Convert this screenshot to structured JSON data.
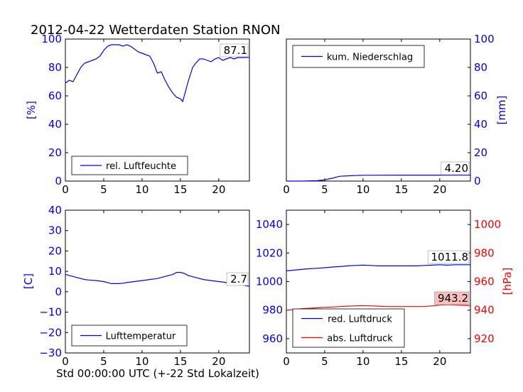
{
  "figure_title": "2012-04-22 Wetterdaten Station RNON",
  "xlabel": "Std 00:00:00 UTC (+-22 Std Lokalzeit)",
  "colors": {
    "blue": "#0000ff",
    "red": "#ff0000",
    "black": "#000000",
    "label_bg_red": "#f6c0c0"
  },
  "chart_data": [
    {
      "type": "line",
      "panel": "humidity",
      "xlim": [
        0,
        24
      ],
      "ylim": [
        0,
        100
      ],
      "xticks": [
        "0",
        "5",
        "10",
        "15",
        "20"
      ],
      "yticks": [
        "0",
        "20",
        "40",
        "60",
        "80",
        "100"
      ],
      "ylabel": "[%]",
      "legend_placement": "lower-left",
      "last_value_label": "87.1",
      "series": [
        {
          "name": "rel. Luftfeuchte",
          "color": "#0000ff",
          "x": [
            0,
            0.5,
            1,
            1.5,
            2,
            2.5,
            3,
            3.5,
            4,
            4.5,
            5,
            5.5,
            6,
            6.5,
            7,
            7.5,
            8,
            8.5,
            9,
            9.5,
            10,
            10.5,
            11,
            11.5,
            12,
            12.5,
            13,
            13.5,
            14,
            14.5,
            15,
            15.3,
            15.6,
            16,
            16.3,
            16.6,
            17,
            17.5,
            18,
            18.5,
            19,
            19.5,
            20,
            20.5,
            21,
            21.5,
            22,
            22.5,
            23,
            23.5,
            24
          ],
          "y": [
            69,
            71,
            70,
            75,
            80,
            83,
            84,
            85,
            86,
            88,
            92,
            95,
            96,
            96,
            96,
            95,
            96,
            95,
            93,
            91,
            90,
            89,
            88,
            83,
            76,
            77,
            71,
            66,
            62,
            59,
            58,
            56,
            62,
            70,
            75,
            80,
            83,
            86,
            86,
            85,
            84,
            86,
            87,
            85,
            86,
            87,
            86,
            87,
            87,
            87,
            87.1
          ]
        }
      ]
    },
    {
      "type": "line",
      "panel": "precipitation",
      "xlim": [
        0,
        24
      ],
      "ylim": [
        0,
        100
      ],
      "xticks": [
        "0",
        "5",
        "10",
        "15",
        "20"
      ],
      "yticks": [
        "0",
        "20",
        "40",
        "60",
        "80",
        "100"
      ],
      "ylabel": "[mm]",
      "legend_placement": "upper-left",
      "last_value_label": "4.20",
      "series": [
        {
          "name": "kum. Niederschlag",
          "color": "#0000ff",
          "x": [
            0,
            2,
            4,
            5,
            5.5,
            6,
            6.5,
            7,
            8,
            9,
            10,
            12,
            15,
            18,
            20,
            22,
            24
          ],
          "y": [
            0,
            0,
            0.3,
            0.8,
            1.5,
            2.0,
            2.8,
            3.4,
            3.7,
            3.9,
            4.1,
            4.15,
            4.2,
            4.2,
            4.2,
            4.2,
            4.2
          ]
        }
      ]
    },
    {
      "type": "line",
      "panel": "temperature",
      "xlim": [
        0,
        24
      ],
      "ylim": [
        -30,
        40
      ],
      "xticks": [
        "0",
        "5",
        "10",
        "15",
        "20"
      ],
      "yticks": [
        "−30",
        "−20",
        "−10",
        "0",
        "10",
        "20",
        "30",
        "40"
      ],
      "ylabel": "[C]",
      "legend_placement": "lower-left",
      "last_value_label": "2.7",
      "series": [
        {
          "name": "Lufttemperatur",
          "color": "#0000ff",
          "x": [
            0,
            0.5,
            1,
            1.5,
            2,
            2.5,
            3,
            4,
            5,
            5.5,
            6,
            7,
            7.5,
            8,
            9,
            10,
            11,
            12,
            13,
            14,
            14.5,
            15,
            15.5,
            16,
            17,
            18,
            19,
            20,
            21,
            22,
            23,
            24
          ],
          "y": [
            8.5,
            8,
            7.5,
            7,
            6.5,
            6,
            5.8,
            5.5,
            5,
            4.5,
            4,
            4,
            4.2,
            4.5,
            5,
            5.5,
            6,
            6.5,
            7.5,
            8.5,
            9.5,
            9.5,
            9,
            8,
            7,
            6,
            5.5,
            5,
            4.5,
            4,
            3.3,
            2.7
          ]
        }
      ]
    },
    {
      "type": "line",
      "panel": "pressure",
      "xlim": [
        0,
        24
      ],
      "ylim": [
        950,
        1050
      ],
      "ylim_right": [
        910,
        1010
      ],
      "xticks": [
        "0",
        "5",
        "10",
        "15",
        "20"
      ],
      "yticks": [
        "960",
        "980",
        "1000",
        "1020",
        "1040"
      ],
      "yticks_right": [
        "920",
        "940",
        "960",
        "980",
        "1000"
      ],
      "ylabel_right": "[hPa]",
      "legend_placement": "lower-left",
      "last_value_labels": [
        "1011.8",
        "943.2"
      ],
      "series": [
        {
          "name": "red. Luftdruck",
          "color": "#0000ff",
          "axis": "left",
          "x": [
            0,
            1,
            2,
            3,
            4,
            5,
            6,
            7,
            8,
            9,
            10,
            11,
            12,
            13,
            14,
            15,
            16,
            17,
            18,
            19,
            20,
            21,
            22,
            23,
            24
          ],
          "y": [
            1007.5,
            1008,
            1008.5,
            1009,
            1009.3,
            1009.7,
            1010.2,
            1010.5,
            1011,
            1011.3,
            1011.5,
            1011.3,
            1011,
            1011,
            1011,
            1011,
            1011,
            1011,
            1011.3,
            1011.5,
            1011.8,
            1011.5,
            1011.8,
            1011.8,
            1011.8
          ]
        },
        {
          "name": "abs. Luftdruck",
          "color": "#ff0000",
          "axis": "right",
          "x": [
            0,
            1,
            2,
            3,
            4,
            5,
            6,
            7,
            8,
            9,
            10,
            11,
            12,
            13,
            14,
            15,
            16,
            17,
            18,
            19,
            20,
            21,
            22,
            23,
            24
          ],
          "y": [
            940,
            940.5,
            941,
            941.3,
            941.6,
            942,
            942.2,
            942.5,
            942.8,
            943,
            943.2,
            943,
            942.8,
            942.5,
            942.5,
            942.5,
            942.5,
            942.5,
            942.5,
            943,
            943.5,
            943.8,
            943.6,
            943.4,
            943.2
          ]
        }
      ]
    }
  ]
}
